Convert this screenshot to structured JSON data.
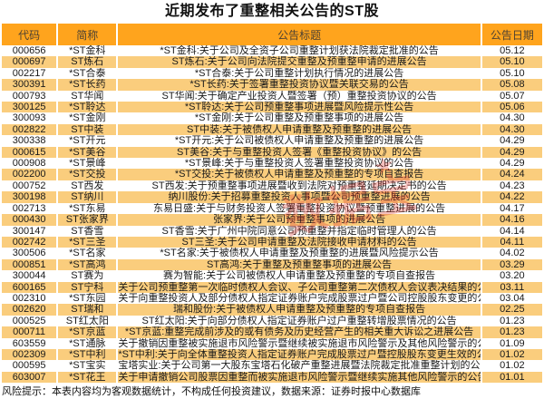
{
  "title": "近期发布了重整相关公告的ST股",
  "chart_data": {
    "type": "table",
    "columns": [
      "代码",
      "简称",
      "公告标题",
      "公告日期"
    ],
    "rows": [
      [
        "000656",
        "*ST金科",
        "*ST金科:关于公司及全资子公司重整计划获法院裁定批准的公告",
        "05.12"
      ],
      [
        "000697",
        "ST炼石",
        "ST炼石:关于公司向法院提交重整及预重整申请的进展公告",
        "05.10"
      ],
      [
        "002217",
        "*ST合泰",
        "*ST合泰:关于公司重整计划执行情况的进展公告",
        "05.10"
      ],
      [
        "300391",
        "*ST长药",
        "*ST长药:关于签署重整投资协议暨关联交易的公告",
        "05.08"
      ],
      [
        "000793",
        "ST华闻",
        "ST华闻:关于确定产业投资人暨签署（预）重整投资协议的公告",
        "05.07"
      ],
      [
        "300125",
        "*ST聆达",
        "*ST聆达:关于公司预重整事项进展暨风险提示性公告",
        "05.06"
      ],
      [
        "300093",
        "*ST金刚",
        "*ST金刚:关于公司重整及预重整事项的进展公告",
        "04.30"
      ],
      [
        "002822",
        "ST中装",
        "ST中装:关于被债权人申请重整及预重整的进展公告",
        "04.30"
      ],
      [
        "300338",
        "*ST开元",
        "*ST开元:关于公司被债权人申请重整及预重整的进展公告",
        "04.29"
      ],
      [
        "000615",
        "*ST美谷",
        "ST美谷:关于与重整投资人签署《重整投资协议》的公告",
        "04.29"
      ],
      [
        "000908",
        "*ST景峰",
        "*ST景峰:关于与重整投资人签署重整投资协议的公告",
        "04.29"
      ],
      [
        "002200",
        "*ST交投",
        "*ST交投:关于被债权人申请重整及预重整的专项自查报告",
        "04.24"
      ],
      [
        "000752",
        "ST西发",
        "ST西发:关于预重整事项进展暨收到法院对预重整延期决定书的公告",
        "04.23"
      ],
      [
        "300198",
        "ST纳川",
        "纳川股份:关于招募重整投资人事项暨公司预重整进展的公告",
        "04.22"
      ],
      [
        "002713",
        "*ST东易",
        "东易日盛:关于与财务投资人签署重整投资协议暨预重整进展的公告",
        "04.17"
      ],
      [
        "000430",
        "ST张家界",
        "张家界:关于公司预重整事项的进展公告",
        "04.16"
      ],
      [
        "300147",
        "ST香雪",
        "ST香雪:关于广州中院同意公司预重整并指定临时管理人的公告",
        "04.14"
      ],
      [
        "002742",
        "*ST三圣",
        "ST三圣:关于公司申请重整及法院接收申请材料的公告",
        "04.11"
      ],
      [
        "300506",
        "*ST名家",
        "*ST名家:关于被债权人申请重整及预重整的进展暨风险提示公告",
        "04.02"
      ],
      [
        "000851",
        "*ST高鸿",
        "ST高鸿:关于重整及预重整事项的进展公告",
        "03.29"
      ],
      [
        "300044",
        "ST赛为",
        "赛为智能:关于公司被债权人申请重整及预重整的专项自查报告",
        "03.20"
      ],
      [
        "600165",
        "ST宁科",
        "关于公司预重整第一次临时债权人会议、子公司重整第二次债权人会议表决结果的公告",
        "03.11"
      ],
      [
        "002310",
        "*ST东园",
        "关于向重整投资人及部分债权人指定证券账户完成股票过户暨公司控股股东变更的公告",
        "03.04"
      ],
      [
        "002620",
        "ST瑞和",
        "瑞和股份:关于被债权人申请重整及预重整的专项自查报告",
        "02.25"
      ],
      [
        "000525",
        "ST红太阳",
        "ST红太阳:关于向部分债权人指定证券账户过户重整转增股票情况的公告",
        "01.23"
      ],
      [
        "000711",
        "*ST京蓝",
        "*ST京蓝:重整完成前涉及的或有债务及历史经营产生的相关重大诉讼之进展公告",
        "01.23"
      ],
      [
        "603559",
        "*ST通脉",
        "关于撤销因重整被实施退市风险警示暨继续被实施退市风险警示及其他风险警示的公告",
        "01.09"
      ],
      [
        "002309",
        "*ST中利",
        "*ST中利:关于向全体重整投资人指定证券账户完成股票过户暨控股股东变更生效的公告",
        "01.02"
      ],
      [
        "000595",
        "*ST宝实",
        "宝塔实业:关于公司第一大股东宝塔石化破产重整进展暨法院裁定批准重整计划的公告",
        "01.02"
      ],
      [
        "603007",
        "*ST花王",
        "关于申请撤销公司股票因重整而被实施退市风险警示暨继续实施其他风险警示的公告",
        "01.01"
      ]
    ]
  },
  "watermark": {
    "star": "★",
    "text": "数据宝"
  },
  "footer": "风险提示：本表内容均为客观数据统计，不构成任何投资建议，数据来源：证券时报中心数据库",
  "colors": {
    "header_bg": "#FFA41D",
    "row_alt_bg": "#FACD7D",
    "watermark_red": "#D93025",
    "text": "#1a1a1a"
  }
}
